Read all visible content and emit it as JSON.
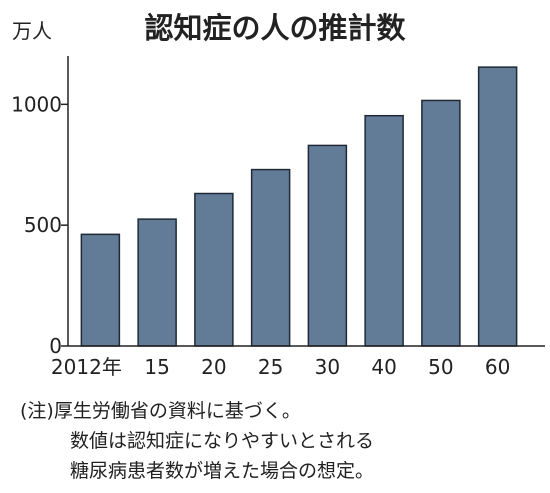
{
  "chart_data": {
    "type": "bar",
    "title": "認知症の人の推計数",
    "ylabel": "万人",
    "categories": [
      "2012年",
      "15",
      "20",
      "25",
      "30",
      "40",
      "50",
      "60"
    ],
    "values": [
      462,
      525,
      631,
      730,
      830,
      953,
      1016,
      1154
    ],
    "ylim": [
      0,
      1200
    ],
    "yticks": [
      0,
      500,
      1000
    ],
    "grid": false,
    "bar_color": "#627b97",
    "bar_stroke": "#1f2a36"
  },
  "note": {
    "line1": "(注)厚生労働省の資料に基づく。",
    "line2": "数値は認知症になりやすいとされる",
    "line3": "糖尿病患者数が増えた場合の想定。"
  }
}
